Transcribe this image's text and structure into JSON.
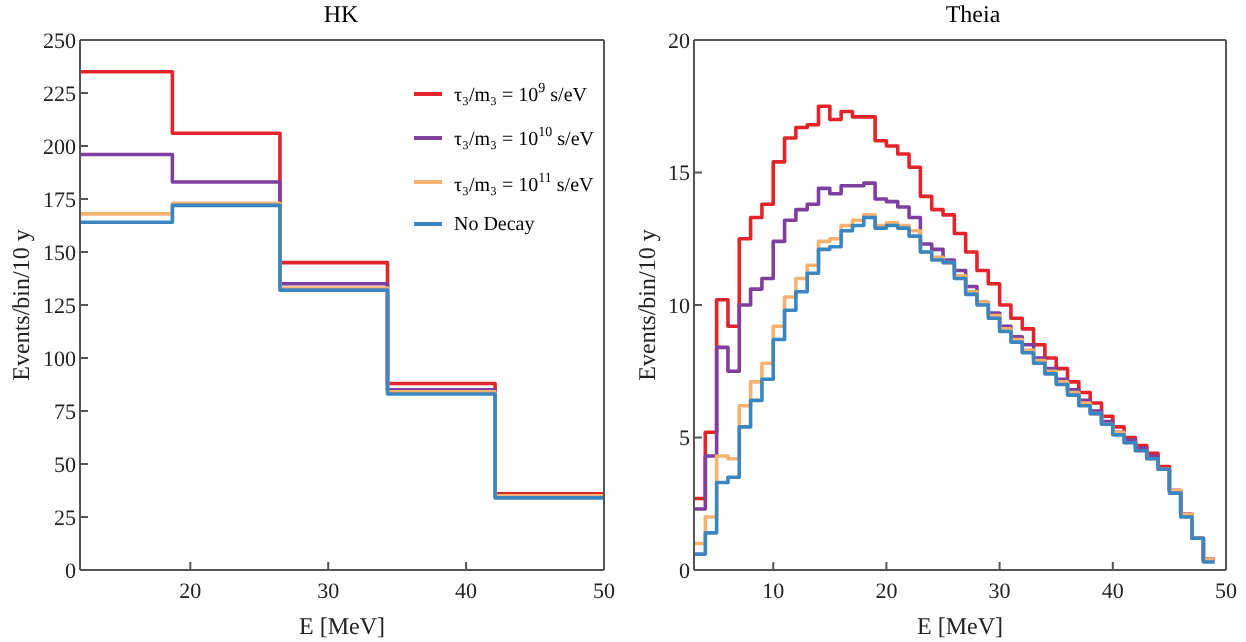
{
  "chart_data": [
    {
      "type": "histogram",
      "title": "HK",
      "xlabel": "E [MeV]",
      "ylabel": "Events/bin/10 y",
      "bins": [
        12,
        18.7,
        26.5,
        34.3,
        42.1,
        50
      ],
      "series": [
        {
          "name": "τ₃/m₃ = 10$^{9}$ s/eV",
          "color": "#e3242b",
          "values": [
            235,
            206,
            145,
            88,
            36
          ]
        },
        {
          "name": "τ₃/m₃ = 10$^{10}$ s/eV",
          "color": "#7e3f9e",
          "values": [
            196,
            183,
            135,
            85,
            35
          ]
        },
        {
          "name": "τ₃/m₃ = 10$^{11}$ s/eV",
          "color": "#f8b270",
          "values": [
            168,
            173,
            133,
            84,
            35
          ]
        },
        {
          "name": "No Decay",
          "color": "#3a86c0",
          "values": [
            164,
            172,
            132,
            83,
            34
          ]
        }
      ],
      "xlim": [
        12,
        50
      ],
      "xticks": [
        20,
        30,
        40,
        50
      ],
      "ylim": [
        0,
        250
      ],
      "yticks": [
        0,
        25,
        50,
        75,
        100,
        125,
        150,
        175,
        200,
        225,
        250
      ],
      "grid": false,
      "legend": "top right"
    },
    {
      "type": "histogram",
      "title": "Theia",
      "xlabel": "E [MeV]",
      "ylabel": "Events/bin/10 y",
      "bins": [
        3,
        4,
        5,
        6,
        7,
        8,
        9,
        10,
        11,
        12,
        13,
        14,
        15,
        16,
        17,
        18,
        19,
        20,
        21,
        22,
        23,
        24,
        25,
        26,
        27,
        28,
        29,
        30,
        31,
        32,
        33,
        34,
        35,
        36,
        37,
        38,
        39,
        40,
        41,
        42,
        43,
        44,
        45,
        46,
        47,
        48,
        49
      ],
      "series": [
        {
          "color": "#e3242b",
          "values": [
            2.7,
            5.2,
            10.2,
            9.2,
            12.5,
            13.3,
            13.8,
            15.4,
            16.3,
            16.7,
            16.8,
            17.5,
            17.0,
            17.3,
            17.1,
            17.1,
            16.2,
            16.0,
            15.7,
            15.2,
            14.1,
            13.6,
            13.4,
            12.7,
            12.0,
            11.3,
            10.8,
            10.0,
            9.5,
            9.1,
            8.5,
            8.0,
            7.6,
            7.1,
            6.7,
            6.3,
            5.8,
            5.4,
            5.0,
            4.7,
            4.4,
            3.9,
            3.0,
            2.1,
            1.2,
            0.4
          ]
        },
        {
          "color": "#7e3f9e",
          "values": [
            2.3,
            4.3,
            8.4,
            7.5,
            10.0,
            10.6,
            11.0,
            12.4,
            13.2,
            13.6,
            13.8,
            14.4,
            14.2,
            14.5,
            14.5,
            14.6,
            14.0,
            13.9,
            13.7,
            13.3,
            12.3,
            12.1,
            11.7,
            11.3,
            10.7,
            10.1,
            9.7,
            9.2,
            8.8,
            8.5,
            8.0,
            7.6,
            7.2,
            6.8,
            6.4,
            6.0,
            5.6,
            5.2,
            4.9,
            4.6,
            4.3,
            3.8,
            3.0,
            2.1,
            1.2,
            0.4
          ]
        },
        {
          "color": "#f8b270",
          "values": [
            1.0,
            2.0,
            4.3,
            4.2,
            6.2,
            7.1,
            7.8,
            9.2,
            10.3,
            11.0,
            11.5,
            12.4,
            12.5,
            13.0,
            13.2,
            13.4,
            13.0,
            13.1,
            13.0,
            12.8,
            12.0,
            11.8,
            11.6,
            11.1,
            10.5,
            10.1,
            9.6,
            9.1,
            8.7,
            8.3,
            7.9,
            7.5,
            7.1,
            6.7,
            6.3,
            5.9,
            5.5,
            5.2,
            4.8,
            4.5,
            4.2,
            3.8,
            3.0,
            2.1,
            1.2,
            0.4
          ]
        },
        {
          "color": "#3a86c0",
          "values": [
            0.6,
            1.4,
            3.3,
            3.5,
            5.4,
            6.4,
            7.2,
            8.7,
            9.8,
            10.5,
            11.2,
            12.1,
            12.2,
            12.8,
            13.0,
            13.3,
            12.9,
            13.0,
            12.9,
            12.6,
            12.0,
            11.7,
            11.6,
            11.0,
            10.4,
            10.0,
            9.5,
            9.0,
            8.6,
            8.2,
            7.8,
            7.4,
            7.0,
            6.6,
            6.2,
            5.9,
            5.5,
            5.1,
            4.8,
            4.5,
            4.2,
            3.8,
            2.9,
            2.0,
            1.2,
            0.3
          ]
        }
      ],
      "xlim": [
        3,
        50
      ],
      "xticks": [
        10,
        20,
        30,
        40,
        50
      ],
      "ylim": [
        0,
        20
      ],
      "yticks": [
        0,
        5,
        10,
        15,
        20
      ],
      "grid": false,
      "legend": false
    }
  ]
}
